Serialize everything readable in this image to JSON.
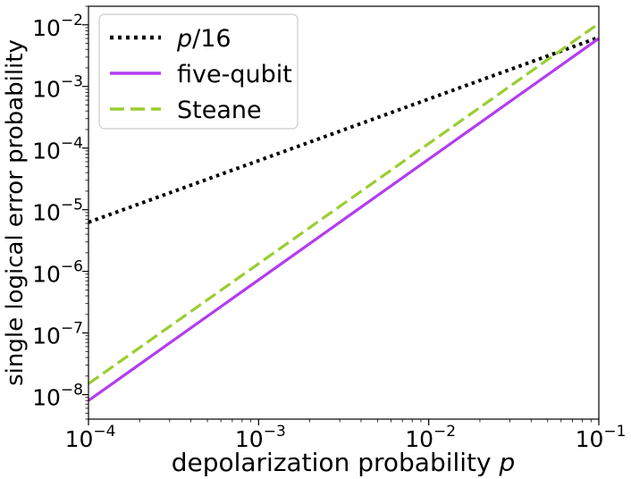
{
  "chart_data": {
    "type": "line",
    "title": "",
    "xlabel": "depolarization probability",
    "xlabel_var": "p",
    "ylabel": "single logical error probability",
    "xscale": "log",
    "yscale": "log",
    "xlim": [
      0.0001,
      0.1
    ],
    "ylim": [
      4e-09,
      0.02
    ],
    "x_ticks": [
      {
        "value": 0.0001,
        "base": "10",
        "exp": "−4"
      },
      {
        "value": 0.001,
        "base": "10",
        "exp": "−3"
      },
      {
        "value": 0.01,
        "base": "10",
        "exp": "−2"
      },
      {
        "value": 0.1,
        "base": "10",
        "exp": "−1"
      }
    ],
    "y_ticks": [
      {
        "value": 1e-08,
        "base": "10",
        "exp": "−8"
      },
      {
        "value": 1e-07,
        "base": "10",
        "exp": "−7"
      },
      {
        "value": 1e-06,
        "base": "10",
        "exp": "−6"
      },
      {
        "value": 1e-05,
        "base": "10",
        "exp": "−5"
      },
      {
        "value": 0.0001,
        "base": "10",
        "exp": "−4"
      },
      {
        "value": 0.001,
        "base": "10",
        "exp": "−3"
      },
      {
        "value": 0.01,
        "base": "10",
        "exp": "−2"
      }
    ],
    "legend_position": "top-left",
    "series": [
      {
        "name": "p/16",
        "label_italic": "p",
        "label_rest": "/16",
        "color": "#000000",
        "style": "dotted",
        "x": [
          0.0001,
          0.1
        ],
        "y": [
          6.25e-06,
          0.00625
        ]
      },
      {
        "name": "five-qubit",
        "label_italic": "",
        "label_rest": "five-qubit",
        "color": "#b43cf0",
        "style": "solid",
        "x": [
          0.0001,
          0.1
        ],
        "y": [
          8e-09,
          0.006
        ]
      },
      {
        "name": "Steane",
        "label_italic": "",
        "label_rest": "Steane",
        "color": "#9acd32",
        "style": "dashed",
        "x": [
          0.0001,
          0.1
        ],
        "y": [
          1.5e-08,
          0.0105
        ]
      }
    ]
  }
}
